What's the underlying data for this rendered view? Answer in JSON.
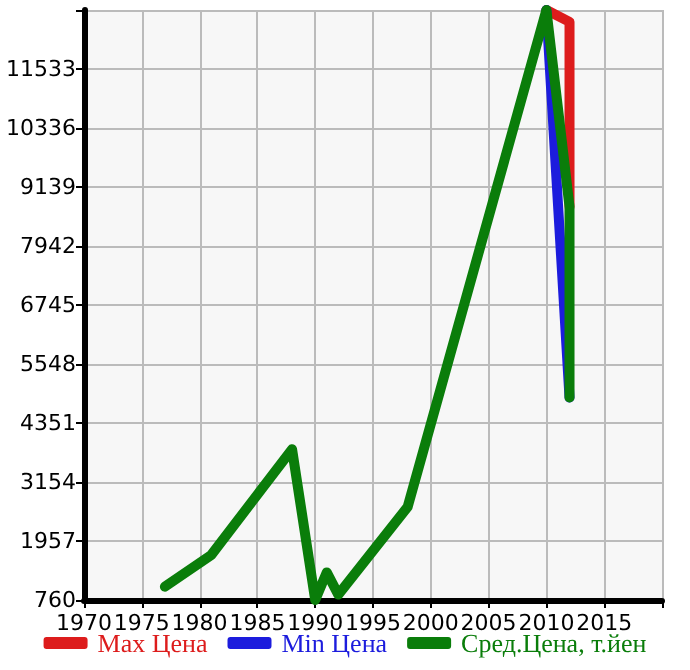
{
  "chart_data": {
    "type": "line",
    "xlim": [
      1970,
      2020
    ],
    "xticks": [
      1970,
      1975,
      1980,
      1985,
      1990,
      1995,
      2000,
      2005,
      2010,
      2015,
      {
        "value": 2020,
        "label": null
      }
    ],
    "ylim": [
      760,
      12730
    ],
    "yticks": [
      760,
      1957,
      3154,
      4351,
      5548,
      6745,
      7942,
      9139,
      10336,
      11533,
      {
        "value": 12730,
        "label": null
      }
    ],
    "grid": true,
    "legend": "bottom",
    "marker": "none",
    "line_style": "solid",
    "series": [
      {
        "name": "Max Цена",
        "color": "#dd1c1c",
        "x": [
          2010,
          2012,
          2012
        ],
        "values": [
          12730,
          12490,
          8740
        ]
      },
      {
        "name": "Min Цена",
        "color": "#1c1cdd",
        "x": [
          2010,
          2012
        ],
        "values": [
          12730,
          4870
        ]
      },
      {
        "name": "Сред.Цена, т.йен",
        "color": "#0a7d0a",
        "x": [
          1977,
          1981,
          1988,
          1990,
          1991,
          1992,
          1998,
          2010,
          2012,
          2012
        ],
        "values": [
          1030,
          1670,
          3820,
          760,
          1320,
          870,
          2650,
          12730,
          8740,
          4870
        ]
      }
    ]
  }
}
